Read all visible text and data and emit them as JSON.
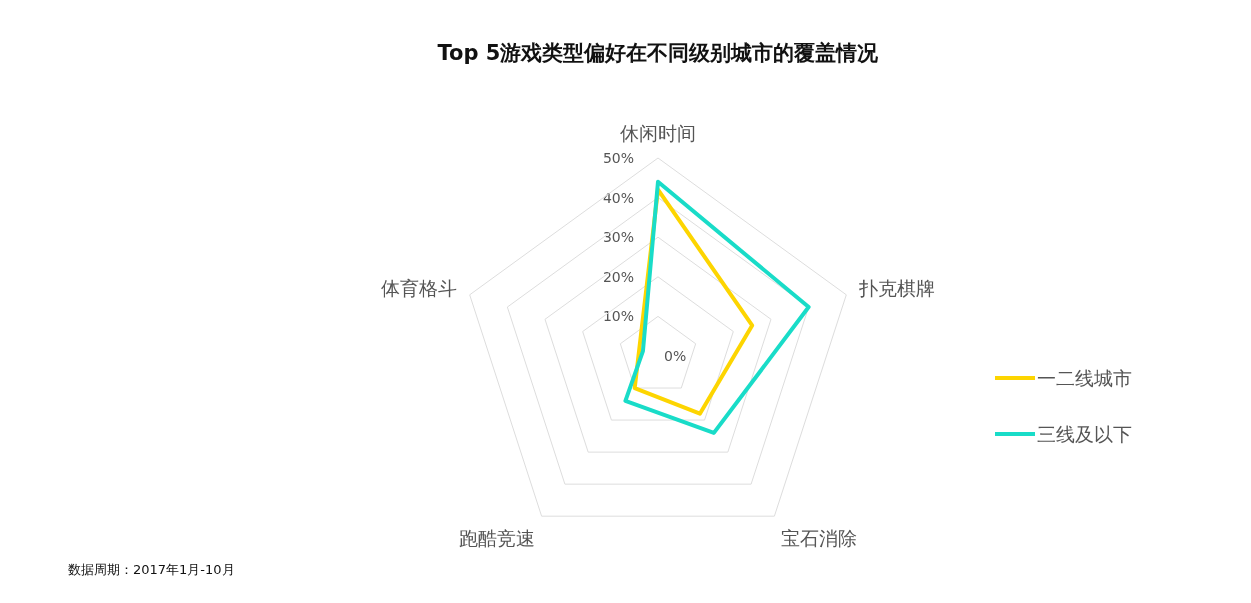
{
  "chart_data": {
    "type": "radar",
    "title": "Top 5游戏类型偏好在不同级别城市的覆盖情况",
    "categories": [
      "休闲时间",
      "扑克棋牌",
      "宝石消除",
      "跑酷竞速",
      "体育格斗"
    ],
    "ylim": [
      0,
      50
    ],
    "yticks": [
      {
        "value": 0,
        "label": "0%"
      },
      {
        "value": 10,
        "label": "10%"
      },
      {
        "value": 20,
        "label": "20%"
      },
      {
        "value": 30,
        "label": "30%"
      },
      {
        "value": 40,
        "label": "40%"
      },
      {
        "value": 50,
        "label": "50%"
      }
    ],
    "series": [
      {
        "name": "一二线城市",
        "color": "#fdd500",
        "values": [
          42,
          25,
          18,
          10,
          5
        ]
      },
      {
        "name": "三线及以下",
        "color": "#19dcc8",
        "values": [
          44,
          40,
          24,
          14,
          4
        ]
      }
    ],
    "legend": "right",
    "annotations": [
      "数据周期：2017年1月-10月"
    ]
  }
}
